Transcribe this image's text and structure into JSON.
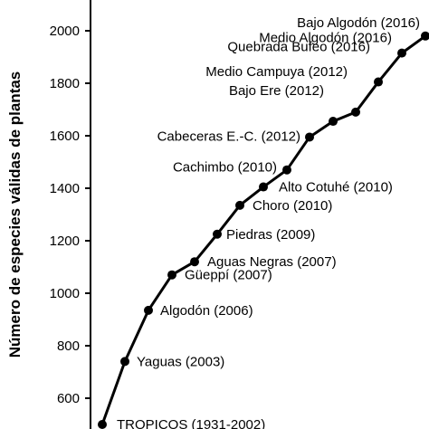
{
  "chart_data": {
    "type": "line",
    "title": "",
    "xlabel": "",
    "ylabel": "Número de especies válidas de plantas",
    "ylim": [
      490,
      2070
    ],
    "yticks": [
      600,
      800,
      1000,
      1200,
      1400,
      1600,
      1800,
      2000
    ],
    "grid": false,
    "legend": "none",
    "series": [
      {
        "labels": [
          "TROPICOS (1931-2002)",
          "Yaguas (2003)",
          "Algodón (2006)",
          "Güeppí (2007)",
          "Aguas Negras (2007)",
          "Piedras (2009)",
          "Choro (2010)",
          "Alto Cotuhé (2010)",
          "Cachimbo (2010)",
          "Cabeceras E.-C. (2012)",
          "Bajo Ere (2012)",
          "Medio Campuya (2012)",
          "Quebrada Bufeo (2016)",
          "Medio Algodón (2016)",
          "Bajo Algodón (2016)"
        ],
        "values": [
          500,
          740,
          935,
          1070,
          1120,
          1225,
          1335,
          1405,
          1470,
          1595,
          1655,
          1690,
          1805,
          1915,
          1980
        ]
      }
    ],
    "colors": {
      "line": "#000000",
      "marker": "#000000"
    }
  }
}
